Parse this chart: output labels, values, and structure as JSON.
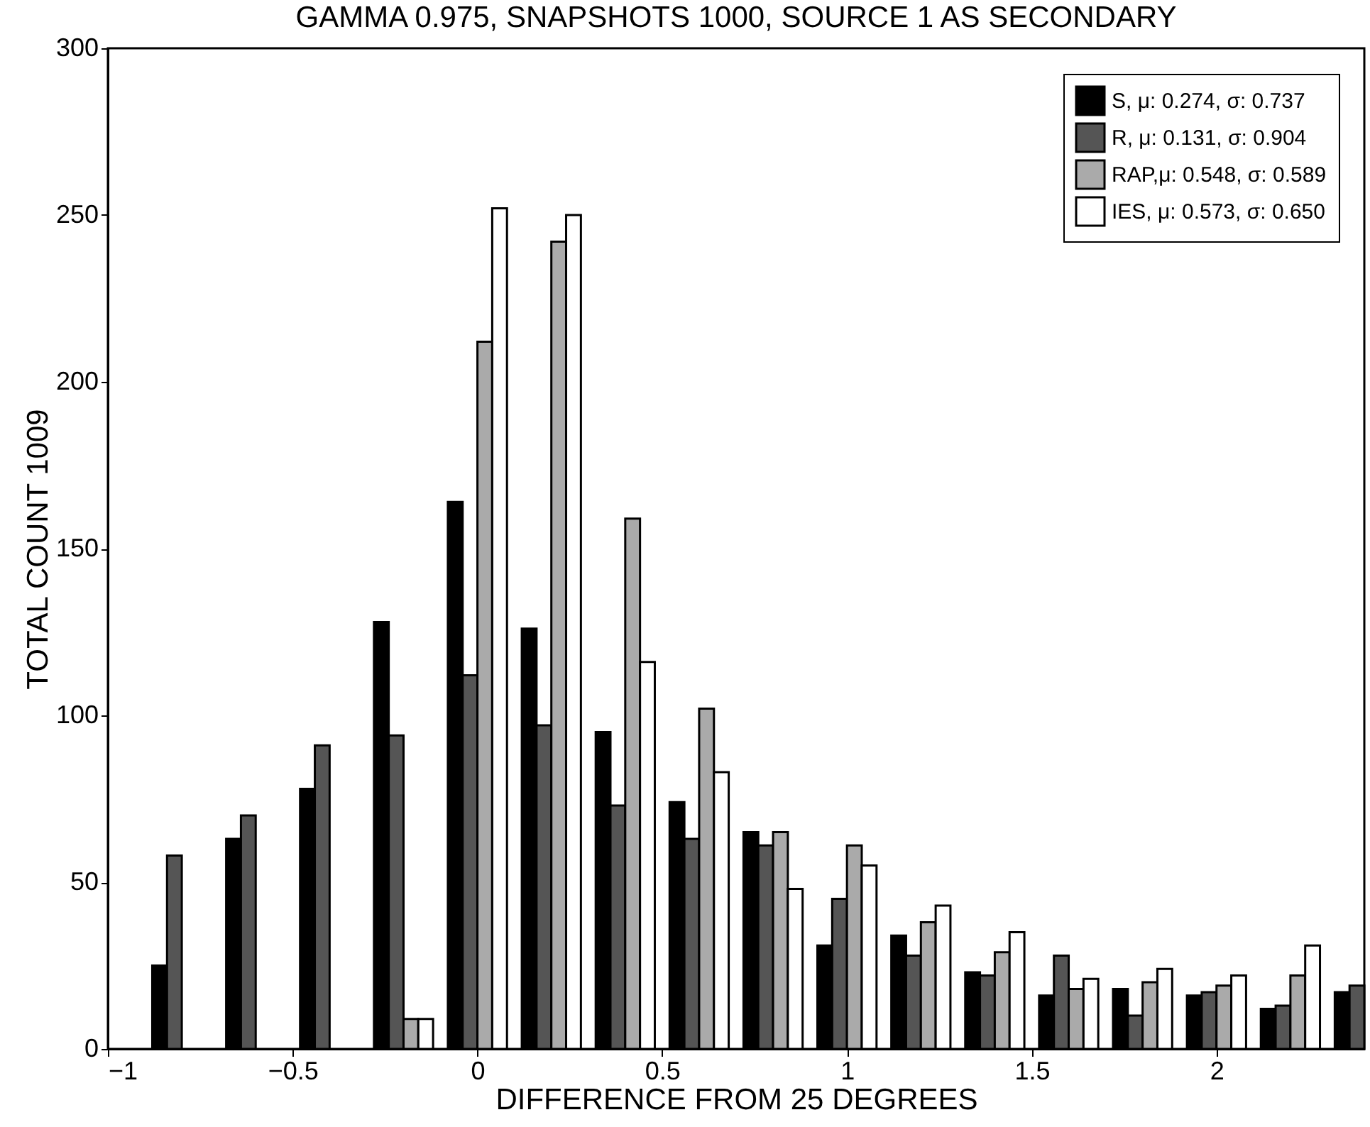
{
  "chart_data": {
    "type": "bar",
    "title": "GAMMA 0.975, SNAPSHOTS 1000, SOURCE 1 AS SECONDARY",
    "xlabel": "DIFFERENCE FROM 25 DEGREES",
    "ylabel": "TOTAL COUNT 1009",
    "x": [
      -0.8,
      -0.6,
      -0.4,
      -0.2,
      0,
      0.2,
      0.4,
      0.6,
      0.8,
      1.0,
      1.2,
      1.4,
      1.6,
      1.8,
      2.0,
      2.2,
      2.4
    ],
    "series": [
      {
        "name": "S, μ: 0.274, σ: 0.737",
        "color": "#000000",
        "values": [
          25,
          63,
          78,
          128,
          164,
          126,
          95,
          74,
          65,
          31,
          34,
          23,
          16,
          18,
          16,
          12,
          17
        ]
      },
      {
        "name": "R,  μ: 0.131, σ: 0.904",
        "color": "#555555",
        "values": [
          58,
          70,
          91,
          94,
          112,
          97,
          73,
          63,
          61,
          45,
          28,
          22,
          28,
          10,
          17,
          13,
          19
        ]
      },
      {
        "name": "RAP,μ: 0.548, σ: 0.589",
        "color": "#aaaaaa",
        "values": [
          null,
          null,
          null,
          9,
          212,
          242,
          159,
          102,
          65,
          61,
          38,
          29,
          18,
          20,
          19,
          22,
          null
        ]
      },
      {
        "name": "IES, μ: 0.573, σ: 0.650",
        "color": "#ffffff",
        "values": [
          null,
          null,
          null,
          9,
          252,
          250,
          116,
          83,
          48,
          55,
          43,
          35,
          21,
          24,
          22,
          31,
          null
        ]
      }
    ],
    "xlim": [
      -1,
      2.4
    ],
    "xticks": [
      -1,
      -0.5,
      0,
      0.5,
      1,
      1.5,
      2
    ],
    "ylim": [
      0,
      300
    ],
    "yticks": [
      0,
      50,
      100,
      150,
      200,
      250,
      300
    ],
    "grid": false,
    "legend": "top right"
  }
}
